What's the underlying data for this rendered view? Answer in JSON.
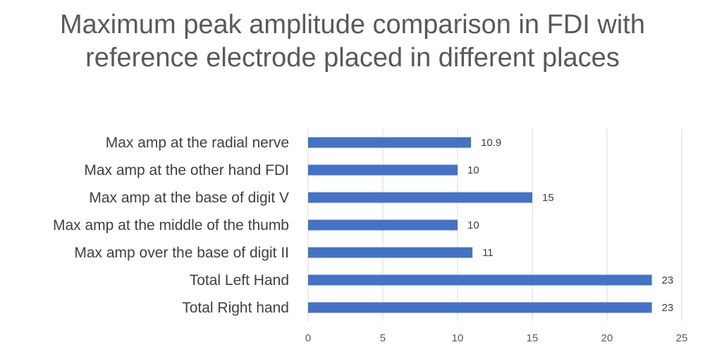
{
  "chart_data": {
    "type": "bar",
    "orientation": "horizontal",
    "title": "Maximum peak amplitude comparison in FDI with reference electrode placed in different places",
    "categories": [
      "Max amp at the radial nerve",
      "Max amp at the other hand FDI",
      "Max amp at the base of digit V",
      "Max amp at the middle of the thumb",
      "Max amp over the base of digit II",
      "Total Left Hand",
      "Total Right hand"
    ],
    "values": [
      10.9,
      10,
      15,
      10,
      11,
      23,
      23
    ],
    "data_labels": [
      "10.9",
      "10",
      "15",
      "10",
      "11",
      "23",
      "23"
    ],
    "xlim": [
      0,
      25
    ],
    "x_ticks": [
      0,
      5,
      10,
      15,
      20,
      25
    ],
    "xlabel": "",
    "ylabel": "",
    "grid": "vertical",
    "legend": "none",
    "bar_color": "#4472C4"
  }
}
